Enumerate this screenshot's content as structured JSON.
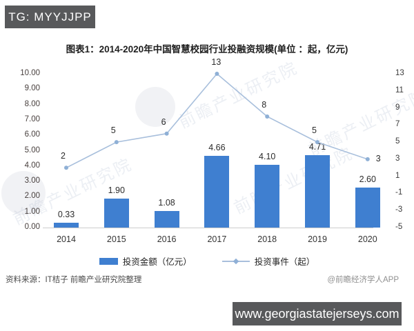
{
  "top_badge": "TG: MYYJJPP",
  "title": "图表1：2014-2020年中国智慧校园行业投融资规模(单位 ：起，亿元)",
  "chart_data": {
    "type": "combo",
    "categories": [
      "2014",
      "2015",
      "2016",
      "2017",
      "2018",
      "2019",
      "2020"
    ],
    "series": [
      {
        "name": "投资金额（亿元）",
        "type": "bar",
        "axis": "left",
        "values": [
          0.33,
          1.9,
          1.08,
          4.66,
          4.1,
          4.71,
          2.6
        ],
        "labels": [
          "0.33",
          "1.90",
          "1.08",
          "4.66",
          "4.10",
          "4.71",
          "2.60"
        ],
        "color": "#3f7fd0"
      },
      {
        "name": "投资事件（起）",
        "type": "line",
        "axis": "right",
        "values": [
          2,
          5,
          6,
          13,
          8,
          5,
          3
        ],
        "labels": [
          "2",
          "5",
          "6",
          "13",
          "8",
          "5",
          "3"
        ],
        "color": "#a8bfdc",
        "marker_color": "#8fb0d6"
      }
    ],
    "left_axis": {
      "min": 0,
      "max": 10,
      "step": 1,
      "labels": [
        "10.00",
        "9.00",
        "8.00",
        "7.00",
        "6.00",
        "5.00",
        "4.00",
        "3.00",
        "2.00",
        "1.00",
        "0.00"
      ]
    },
    "right_axis": {
      "min": -5,
      "max": 13,
      "step": 2,
      "labels": [
        "13",
        "11",
        "9",
        "7",
        "5",
        "3",
        "1",
        "-1",
        "-3",
        "-5"
      ]
    },
    "legend_position": "bottom",
    "grid": false
  },
  "watermark": {
    "text": "前瞻产业研究院"
  },
  "source_note": "资料来源：IT桔子 前瞻产业研究院整理",
  "credit": "@前瞻经济学人APP",
  "bottom_badge": "www.georgiastatejerseys.com",
  "colors": {
    "bar": "#3f7fd0",
    "line": "#a8bfdc",
    "badge_bg": "#58595b",
    "axis_line": "#cccccc"
  }
}
